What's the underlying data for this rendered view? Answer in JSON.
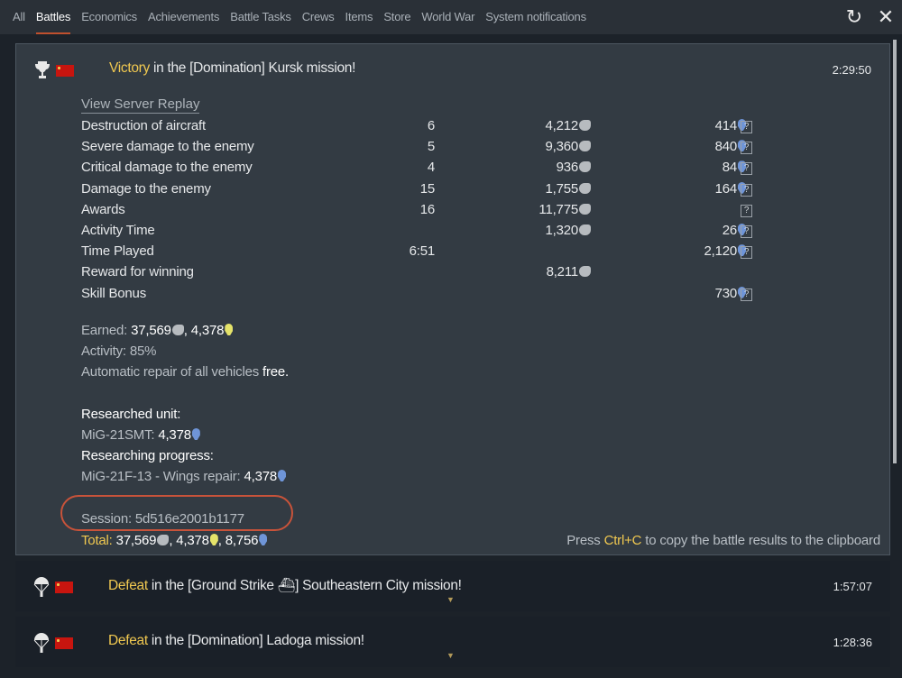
{
  "tabs": [
    "All",
    "Battles",
    "Economics",
    "Achievements",
    "Battle Tasks",
    "Crews",
    "Items",
    "Store",
    "World War",
    "System notifications"
  ],
  "active_tab": "Battles",
  "toolbar": {
    "refresh_icon": "refresh-icon",
    "close_icon": "close-icon"
  },
  "main": {
    "result": "Victory",
    "title_rest": " in the [Domination] Kursk mission!",
    "time": "2:29:50",
    "replay": "View Server Replay",
    "rows": [
      {
        "label": "Destruction of aircraft",
        "count": "6",
        "sl": "4,212",
        "rp": "414",
        "help": true
      },
      {
        "label": "Severe damage to the enemy",
        "count": "5",
        "sl": "9,360",
        "rp": "840",
        "help": true
      },
      {
        "label": "Critical damage to the enemy",
        "count": "4",
        "sl": "936",
        "rp": "84",
        "help": true
      },
      {
        "label": "Damage to the enemy",
        "count": "15",
        "sl": "1,755",
        "rp": "164",
        "help": true
      },
      {
        "label": "Awards",
        "count": "16",
        "sl": "11,775",
        "rp": "",
        "help": true
      },
      {
        "label": "Activity Time",
        "count": "",
        "sl": "1,320",
        "rp": "26",
        "help": true
      },
      {
        "label": "Time Played",
        "count": "6:51",
        "sl": "",
        "rp": "2,120",
        "help": true
      },
      {
        "label": "Reward for winning",
        "count": "",
        "sl": "8,211",
        "rp": "",
        "help": false
      },
      {
        "label": "Skill Bonus",
        "count": "",
        "sl": "",
        "rp": "730",
        "help": true
      }
    ],
    "help_glyph": "?",
    "earned_label": "Earned: ",
    "earned_sl": "37,569",
    "earned_sep": ", ",
    "earned_crp": "4,378",
    "activity": "Activity: 85%",
    "repair_label": "Automatic repair of all vehicles ",
    "repair_value": "free.",
    "researched_label": "Researched unit:",
    "researched_unit": "MiG-21SMT: ",
    "researched_rp": "4,378",
    "progress_label": "Researching progress:",
    "progress_unit": "MiG-21F-13 - Wings repair: ",
    "progress_rp": "4,378",
    "session": "Session: 5d516e2001b1177",
    "total_label": "Total:",
    "total_sl": " 37,569",
    "total_crp": "4,378",
    "total_rp": "8,756",
    "sep": ", ",
    "copy_pre": "Press ",
    "copy_key": "Ctrl+C",
    "copy_post": " to copy the battle results to the clipboard"
  },
  "collapsed": [
    {
      "result": "Defeat",
      "title_rest": " in the [Ground Strike ⛴] Southeastern City mission!",
      "time": "1:57:07"
    },
    {
      "result": "Defeat",
      "title_rest": " in the [Domination] Ladoga mission!",
      "time": "1:28:36"
    }
  ],
  "colors": {
    "accent": "#f0c850",
    "tab_underline": "#c0502e",
    "rp": "#6f95d8",
    "crp": "#e5e36a",
    "highlight_ring": "#c8533a"
  }
}
